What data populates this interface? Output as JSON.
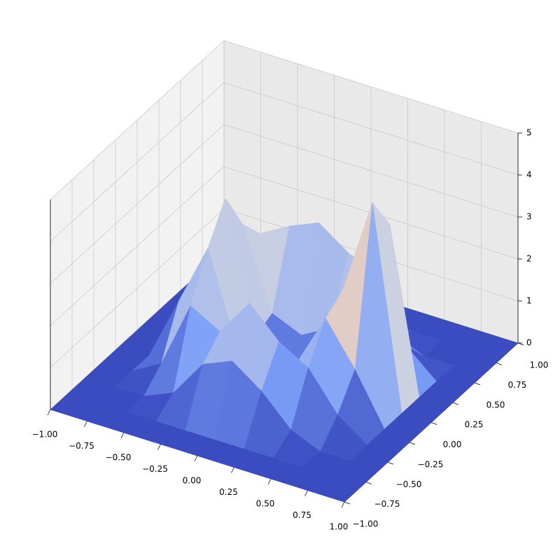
{
  "chart_data": {
    "type": "surface",
    "colormap": "coolwarm",
    "x": [
      -1,
      -0.8,
      -0.6,
      -0.4,
      -0.2,
      0,
      0.2,
      0.4,
      0.6,
      0.8,
      1
    ],
    "y": [
      -1,
      -0.8,
      -0.6,
      -0.4,
      -0.2,
      0,
      0.2,
      0.4,
      0.6,
      0.8,
      1
    ],
    "z": [
      [
        0,
        0,
        0,
        0,
        0,
        0,
        0,
        0,
        0,
        0,
        0
      ],
      [
        0,
        0,
        0,
        0,
        0,
        0,
        0,
        0,
        0,
        0,
        0
      ],
      [
        0,
        0,
        0,
        0.3,
        1.2,
        1.5,
        1.0,
        0.3,
        0,
        0,
        0
      ],
      [
        0,
        0,
        0.4,
        2.0,
        1.6,
        2.5,
        1.8,
        1.4,
        0.5,
        0,
        0
      ],
      [
        0,
        0,
        1.5,
        3.0,
        0.8,
        0.6,
        0.9,
        2.2,
        1.2,
        0,
        0
      ],
      [
        0,
        0,
        1.2,
        3.8,
        0.7,
        0.5,
        0.6,
        2.5,
        4.8,
        0,
        0
      ],
      [
        0,
        0,
        1.0,
        2.8,
        0.9,
        0.6,
        1.0,
        2.0,
        3.9,
        0,
        0
      ],
      [
        0,
        0,
        0.4,
        2.2,
        2.6,
        2.9,
        2.4,
        2.1,
        0.6,
        0,
        0
      ],
      [
        0,
        0,
        0,
        0.3,
        1.5,
        1.8,
        1.3,
        0.3,
        0,
        0,
        0
      ],
      [
        0,
        0,
        0,
        0,
        0,
        0,
        0,
        0,
        0,
        0,
        0
      ],
      [
        0,
        0,
        0,
        0,
        0,
        0,
        0,
        0,
        0,
        0,
        0
      ]
    ],
    "xlim": [
      -1,
      1
    ],
    "ylim": [
      -1,
      1
    ],
    "zlim": [
      0,
      5
    ],
    "xticks": [
      {
        "value": -1,
        "label": "−1.00"
      },
      {
        "value": -0.75,
        "label": "−0.75"
      },
      {
        "value": -0.5,
        "label": "−0.50"
      },
      {
        "value": -0.25,
        "label": "−0.25"
      },
      {
        "value": 0,
        "label": "0.00"
      },
      {
        "value": 0.25,
        "label": "0.25"
      },
      {
        "value": 0.5,
        "label": "0.50"
      },
      {
        "value": 0.75,
        "label": "0.75"
      },
      {
        "value": 1,
        "label": "1.00"
      }
    ],
    "yticks": [
      {
        "value": -1,
        "label": "−1.00"
      },
      {
        "value": -0.75,
        "label": "−0.75"
      },
      {
        "value": -0.5,
        "label": "−0.50"
      },
      {
        "value": -0.25,
        "label": "−0.25"
      },
      {
        "value": 0,
        "label": "0.00"
      },
      {
        "value": 0.25,
        "label": "0.25"
      },
      {
        "value": 0.5,
        "label": "0.50"
      },
      {
        "value": 0.75,
        "label": "0.75"
      },
      {
        "value": 1,
        "label": "1.00"
      }
    ],
    "zticks": [
      0,
      1,
      2,
      3,
      4,
      5
    ],
    "grid": true
  }
}
